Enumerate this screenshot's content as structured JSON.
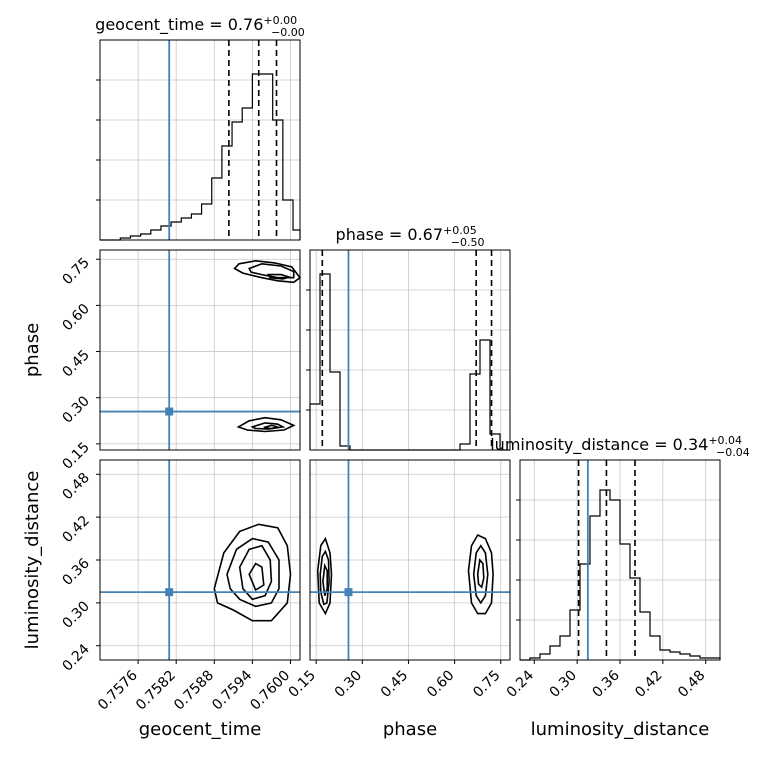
{
  "chart_data": {
    "type": "corner",
    "parameters": [
      "geocent_time",
      "phase",
      "luminosity_distance"
    ],
    "truths": {
      "geocent_time": 0.75809,
      "phase": 0.255,
      "luminosity_distance": 0.315
    },
    "panels": [
      {
        "type": "histogram",
        "param": "geocent_time",
        "title_text": "geocent_time = 0.76",
        "title_plus": "+0.00",
        "title_minus": "−0.00",
        "xlim": [
          0.757,
          0.76015
        ],
        "ylim": [
          0,
          1.0
        ],
        "bin_edges": [
          0.757,
          0.75716,
          0.75732,
          0.75748,
          0.75764,
          0.7578,
          0.75796,
          0.75812,
          0.75828,
          0.75844,
          0.7586,
          0.75876,
          0.75892,
          0.75908,
          0.75924,
          0.7594,
          0.75956,
          0.75972,
          0.75988,
          0.76004,
          0.76015
        ],
        "counts": [
          0.0,
          0.0,
          0.01,
          0.02,
          0.03,
          0.05,
          0.07,
          0.09,
          0.11,
          0.13,
          0.18,
          0.31,
          0.47,
          0.59,
          0.66,
          0.83,
          0.83,
          0.6,
          0.2,
          0.05
        ],
        "quantiles": [
          0.75903,
          0.7595,
          0.75978
        ],
        "grid": true
      },
      {
        "type": "histogram",
        "param": "phase",
        "title_text": "phase = 0.67",
        "title_plus": "+0.05",
        "title_minus": "−0.50",
        "xlim": [
          0.13,
          0.78
        ],
        "ylim": [
          0,
          1.0
        ],
        "bin_edges": [
          0.13,
          0.1625,
          0.195,
          0.2275,
          0.26,
          0.2925,
          0.325,
          0.3575,
          0.39,
          0.4225,
          0.455,
          0.4875,
          0.52,
          0.5525,
          0.585,
          0.6175,
          0.65,
          0.6825,
          0.715,
          0.7475,
          0.78
        ],
        "counts": [
          0.23,
          0.88,
          0.39,
          0.02,
          0.0,
          0.0,
          0.0,
          0.0,
          0.0,
          0.0,
          0.0,
          0.0,
          0.0,
          0.0,
          0.0,
          0.03,
          0.38,
          0.55,
          0.08,
          0.0
        ],
        "quantiles": [
          0.17,
          0.67,
          0.72
        ],
        "grid": true
      },
      {
        "type": "histogram",
        "param": "luminosity_distance",
        "title_text": "luminosity_distance = 0.34",
        "title_plus": "+0.04",
        "title_minus": "−0.04",
        "xlim": [
          0.22,
          0.5
        ],
        "ylim": [
          0,
          1.0
        ],
        "bin_edges": [
          0.22,
          0.234,
          0.248,
          0.262,
          0.276,
          0.29,
          0.304,
          0.318,
          0.332,
          0.346,
          0.36,
          0.374,
          0.388,
          0.402,
          0.416,
          0.43,
          0.444,
          0.458,
          0.472,
          0.486,
          0.5
        ],
        "counts": [
          0.0,
          0.01,
          0.03,
          0.07,
          0.12,
          0.25,
          0.48,
          0.72,
          0.85,
          0.8,
          0.58,
          0.41,
          0.24,
          0.12,
          0.05,
          0.04,
          0.03,
          0.02,
          0.01,
          0.01
        ],
        "quantiles": [
          0.302,
          0.341,
          0.381
        ],
        "grid": true
      }
    ],
    "pairs": [
      {
        "x": "geocent_time",
        "y": "phase",
        "xlim": [
          0.757,
          0.76015
        ],
        "ylim": [
          0.13,
          0.78
        ],
        "contours": [
          [
            [
              0.75919,
              0.735
            ],
            [
              0.75945,
              0.745
            ],
            [
              0.75975,
              0.738
            ],
            [
              0.76002,
              0.725
            ],
            [
              0.76015,
              0.69
            ],
            [
              0.76005,
              0.675
            ],
            [
              0.7598,
              0.68
            ],
            [
              0.75955,
              0.69
            ],
            [
              0.75925,
              0.705
            ],
            [
              0.75912,
              0.72
            ]
          ],
          [
            [
              0.75935,
              0.72
            ],
            [
              0.75955,
              0.735
            ],
            [
              0.75985,
              0.728
            ],
            [
              0.76005,
              0.71
            ],
            [
              0.76005,
              0.69
            ],
            [
              0.7598,
              0.69
            ],
            [
              0.75955,
              0.7
            ],
            [
              0.75938,
              0.708
            ]
          ],
          [
            [
              0.75965,
              0.7
            ],
            [
              0.75985,
              0.7
            ],
            [
              0.75998,
              0.692
            ],
            [
              0.75988,
              0.686
            ],
            [
              0.75968,
              0.69
            ]
          ],
          [
            [
              0.75918,
              0.205
            ],
            [
              0.75935,
              0.225
            ],
            [
              0.7596,
              0.235
            ],
            [
              0.75985,
              0.228
            ],
            [
              0.76005,
              0.21
            ],
            [
              0.7599,
              0.195
            ],
            [
              0.7596,
              0.19
            ],
            [
              0.75932,
              0.195
            ]
          ],
          [
            [
              0.7594,
              0.205
            ],
            [
              0.7596,
              0.218
            ],
            [
              0.7598,
              0.214
            ],
            [
              0.75988,
              0.205
            ],
            [
              0.75965,
              0.198
            ],
            [
              0.75945,
              0.2
            ]
          ],
          [
            [
              0.75958,
              0.203
            ],
            [
              0.7597,
              0.21
            ],
            [
              0.7598,
              0.205
            ],
            [
              0.7597,
              0.2
            ]
          ]
        ],
        "grid": true
      },
      {
        "x": "geocent_time",
        "y": "luminosity_distance",
        "xlim": [
          0.757,
          0.76015
        ],
        "ylim": [
          0.22,
          0.5
        ],
        "contours": [
          [
            [
              0.7588,
              0.32
            ],
            [
              0.75895,
              0.37
            ],
            [
              0.7592,
              0.4
            ],
            [
              0.7595,
              0.41
            ],
            [
              0.7598,
              0.405
            ],
            [
              0.75995,
              0.38
            ],
            [
              0.76,
              0.34
            ],
            [
              0.75995,
              0.3
            ],
            [
              0.7597,
              0.275
            ],
            [
              0.7594,
              0.275
            ],
            [
              0.7591,
              0.29
            ],
            [
              0.75885,
              0.3
            ]
          ],
          [
            [
              0.759,
              0.34
            ],
            [
              0.75915,
              0.375
            ],
            [
              0.7594,
              0.39
            ],
            [
              0.75965,
              0.385
            ],
            [
              0.75982,
              0.36
            ],
            [
              0.75982,
              0.32
            ],
            [
              0.7597,
              0.3
            ],
            [
              0.75945,
              0.295
            ],
            [
              0.7592,
              0.305
            ],
            [
              0.75905,
              0.32
            ]
          ],
          [
            [
              0.7592,
              0.35
            ],
            [
              0.75935,
              0.375
            ],
            [
              0.75955,
              0.38
            ],
            [
              0.75968,
              0.36
            ],
            [
              0.7597,
              0.33
            ],
            [
              0.7596,
              0.31
            ],
            [
              0.7594,
              0.305
            ],
            [
              0.75925,
              0.32
            ]
          ],
          [
            [
              0.75935,
              0.34
            ],
            [
              0.75945,
              0.355
            ],
            [
              0.75955,
              0.35
            ],
            [
              0.75958,
              0.325
            ],
            [
              0.75945,
              0.318
            ]
          ]
        ],
        "grid": true
      },
      {
        "x": "phase",
        "y": "luminosity_distance",
        "xlim": [
          0.13,
          0.78
        ],
        "ylim": [
          0.22,
          0.5
        ],
        "contours": [
          [
            [
              0.155,
              0.345
            ],
            [
              0.165,
              0.38
            ],
            [
              0.18,
              0.39
            ],
            [
              0.195,
              0.37
            ],
            [
              0.2,
              0.34
            ],
            [
              0.195,
              0.3
            ],
            [
              0.18,
              0.285
            ],
            [
              0.16,
              0.3
            ]
          ],
          [
            [
              0.163,
              0.34
            ],
            [
              0.17,
              0.365
            ],
            [
              0.18,
              0.372
            ],
            [
              0.19,
              0.36
            ],
            [
              0.192,
              0.33
            ],
            [
              0.185,
              0.3
            ],
            [
              0.175,
              0.298
            ],
            [
              0.165,
              0.315
            ]
          ],
          [
            [
              0.172,
              0.33
            ],
            [
              0.178,
              0.352
            ],
            [
              0.186,
              0.345
            ],
            [
              0.186,
              0.32
            ],
            [
              0.178,
              0.31
            ]
          ],
          [
            [
              0.645,
              0.345
            ],
            [
              0.655,
              0.38
            ],
            [
              0.675,
              0.395
            ],
            [
              0.7,
              0.39
            ],
            [
              0.72,
              0.37
            ],
            [
              0.725,
              0.34
            ],
            [
              0.72,
              0.3
            ],
            [
              0.7,
              0.285
            ],
            [
              0.675,
              0.285
            ],
            [
              0.655,
              0.3
            ]
          ],
          [
            [
              0.662,
              0.34
            ],
            [
              0.67,
              0.37
            ],
            [
              0.685,
              0.38
            ],
            [
              0.7,
              0.37
            ],
            [
              0.708,
              0.34
            ],
            [
              0.7,
              0.31
            ],
            [
              0.685,
              0.3
            ],
            [
              0.67,
              0.31
            ]
          ],
          [
            [
              0.675,
              0.34
            ],
            [
              0.682,
              0.36
            ],
            [
              0.692,
              0.355
            ],
            [
              0.695,
              0.335
            ],
            [
              0.688,
              0.322
            ],
            [
              0.678,
              0.326
            ]
          ]
        ],
        "grid": true
      }
    ],
    "x_ticks": {
      "geocent_time": [
        0.7576,
        0.7582,
        0.7588,
        0.7594,
        0.76
      ],
      "phase": [
        0.15,
        0.3,
        0.45,
        0.6,
        0.75
      ],
      "luminosity_distance": [
        0.24,
        0.3,
        0.36,
        0.42,
        0.48
      ]
    },
    "x_tick_labels": {
      "geocent_time": [
        "0.7576",
        "0.7582",
        "0.7588",
        "0.7594",
        "0.7600"
      ],
      "phase": [
        "0.15",
        "0.30",
        "0.45",
        "0.60",
        "0.75"
      ],
      "luminosity_distance": [
        "0.24",
        "0.30",
        "0.36",
        "0.42",
        "0.48"
      ]
    },
    "y_ticks": {
      "phase": [
        0.15,
        0.3,
        0.45,
        0.6,
        0.75
      ],
      "luminosity_distance": [
        0.24,
        0.3,
        0.36,
        0.42,
        0.48
      ]
    },
    "y_tick_labels": {
      "phase": [
        "0.15",
        "0.30",
        "0.45",
        "0.60",
        "0.75"
      ],
      "luminosity_distance": [
        "0.24",
        "0.30",
        "0.36",
        "0.42",
        "0.48"
      ]
    },
    "xlabels": [
      "geocent_time",
      "phase",
      "luminosity_distance"
    ],
    "ylabels": [
      "phase",
      "luminosity_distance"
    ],
    "colors": {
      "truth": "#4682b4",
      "hist": "#000000",
      "grid": "#c8c8c8"
    }
  }
}
